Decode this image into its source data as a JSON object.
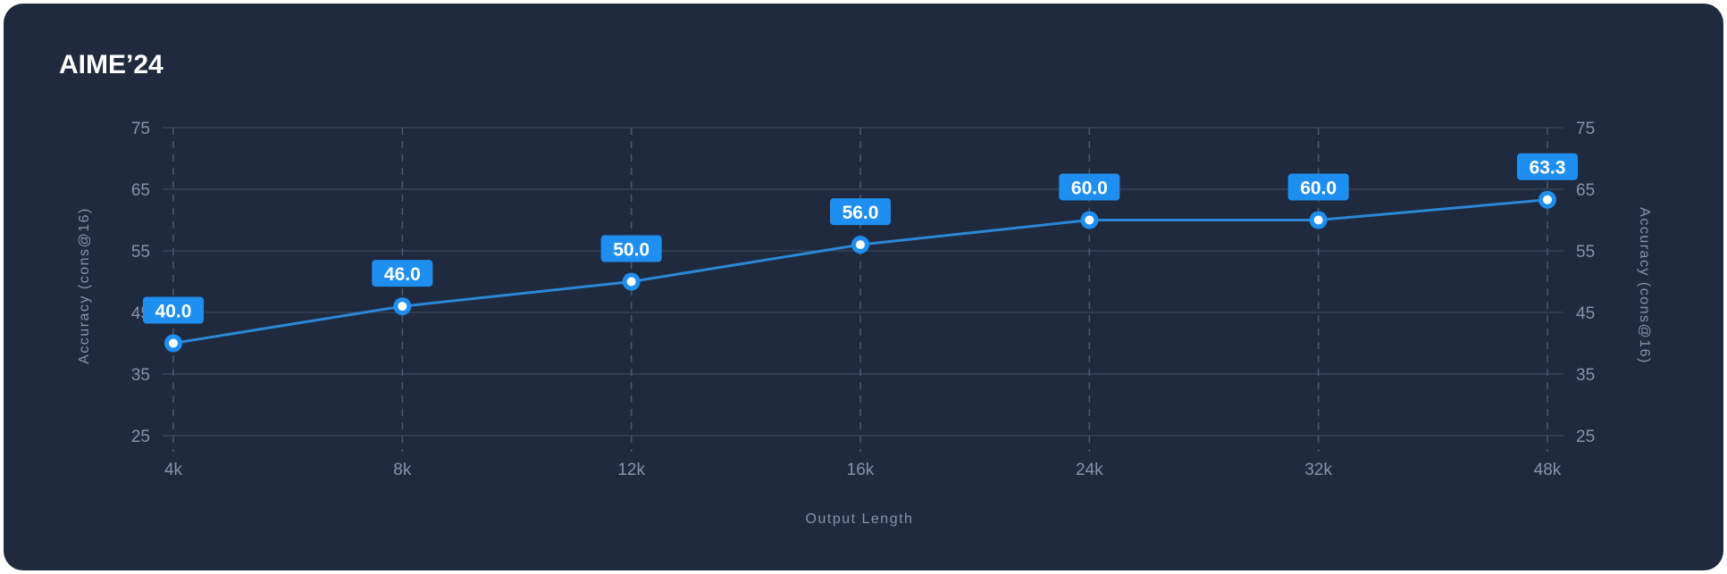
{
  "chart_data": {
    "type": "line",
    "title": "AIME’24",
    "xlabel": "Output Length",
    "ylabel": "Accuracy  (cons@16)",
    "ylabel_right": "Accuracy  (cons@16)",
    "categories": [
      "4k",
      "8k",
      "12k",
      "16k",
      "24k",
      "32k",
      "48k"
    ],
    "values": [
      40.0,
      46.0,
      50.0,
      56.0,
      60.0,
      60.0,
      63.3
    ],
    "data_labels": [
      "40.0",
      "46.0",
      "50.0",
      "56.0",
      "60.0",
      "60.0",
      "63.3"
    ],
    "yticks": [
      25,
      35,
      45,
      55,
      65,
      75
    ],
    "ylim": [
      25,
      75
    ],
    "grid": true,
    "colors": {
      "line": "#2a88d8",
      "label_bg": "#1e8ff0",
      "background": "#1f2a3e",
      "grid": "#3a475e"
    }
  }
}
